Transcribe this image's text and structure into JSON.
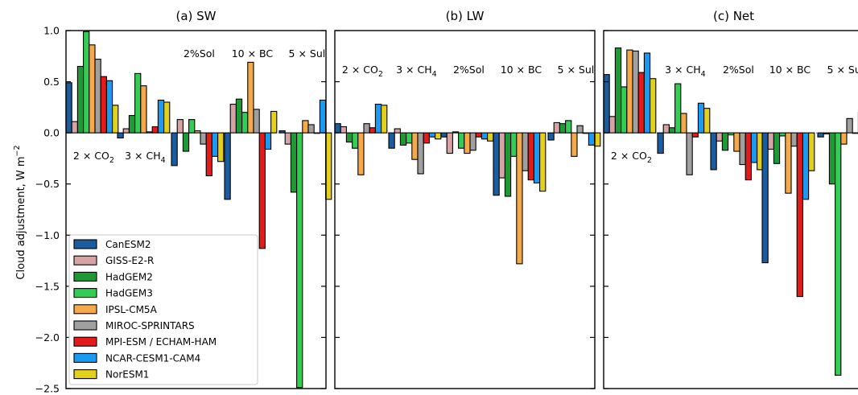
{
  "chart_data": {
    "type": "bar",
    "ylabel": "Cloud adjustment, W m−2",
    "ylim": [
      -2.5,
      1.0
    ],
    "yticks": [
      "1.0",
      "0.5",
      "0.0",
      "−0.5",
      "−1.0",
      "−1.5",
      "−2.0",
      "−2.5"
    ],
    "categories": [
      "2 × CO2",
      "3 × CH4",
      "2%Sol",
      "10 × BC",
      "5 × Sul"
    ],
    "models": [
      {
        "name": "CanESM2",
        "color": "#1b5c9e"
      },
      {
        "name": "GISS-E2-R",
        "color": "#d8a3a3"
      },
      {
        "name": "HadGEM2",
        "color": "#1e9a35"
      },
      {
        "name": "HadGEM3",
        "color": "#33cc55"
      },
      {
        "name": "IPSL-CM5A",
        "color": "#f5a94a"
      },
      {
        "name": "MIROC-SPRINTARS",
        "color": "#a0a0a0"
      },
      {
        "name": "MPI-ESM / ECHAM-HAM",
        "color": "#e51a1a"
      },
      {
        "name": "NCAR-CESM1-CAM4",
        "color": "#1a9af0"
      },
      {
        "name": "NorESM1",
        "color": "#e3d01a"
      }
    ],
    "panels": [
      {
        "title": "(a) SW",
        "values": [
          [
            0.49,
            0.11,
            0.65,
            0.99,
            0.86,
            0.72,
            0.55,
            0.51,
            0.27
          ],
          [
            -0.05,
            0.04,
            0.17,
            0.58,
            0.46,
            0.01,
            0.06,
            0.32,
            0.3
          ],
          [
            -0.32,
            0.13,
            -0.18,
            0.13,
            0.02,
            -0.11,
            -0.42,
            -0.23,
            -0.28
          ],
          [
            -0.65,
            0.28,
            0.33,
            0.2,
            0.69,
            0.23,
            -1.13,
            -0.16,
            0.21
          ],
          [
            0.02,
            -0.11,
            -0.58,
            -2.49,
            0.12,
            0.08,
            0.0,
            0.32,
            -0.65
          ]
        ],
        "category_labels": [
          {
            "base": "2 × CO",
            "sub": "2",
            "side": "below"
          },
          {
            "base": "3 × CH",
            "sub": "4",
            "side": "below"
          },
          {
            "base": "2%Sol",
            "sub": "",
            "side": "above"
          },
          {
            "base": "10 × BC",
            "sub": "",
            "side": "above"
          },
          {
            "base": "5 × Sul",
            "sub": "",
            "side": "above"
          }
        ]
      },
      {
        "title": "(b) LW",
        "values": [
          [
            0.09,
            0.06,
            -0.09,
            -0.15,
            -0.41,
            0.09,
            0.05,
            0.28,
            0.27
          ],
          [
            -0.15,
            0.04,
            -0.12,
            -0.1,
            -0.26,
            -0.4,
            -0.1,
            -0.04,
            -0.06
          ],
          [
            -0.04,
            -0.2,
            0.01,
            -0.15,
            -0.2,
            -0.17,
            -0.04,
            -0.06,
            -0.08
          ],
          [
            -0.61,
            -0.44,
            -0.62,
            -0.23,
            -1.28,
            -0.37,
            -0.46,
            -0.49,
            -0.57
          ],
          [
            -0.07,
            0.1,
            0.09,
            0.12,
            -0.23,
            0.07,
            0.0,
            -0.12,
            -0.13
          ]
        ],
        "category_labels": [
          {
            "base": "2 × CO",
            "sub": "2",
            "side": "above"
          },
          {
            "base": "3 × CH",
            "sub": "4",
            "side": "above"
          },
          {
            "base": "2%Sol",
            "sub": "",
            "side": "above"
          },
          {
            "base": "10 × BC",
            "sub": "",
            "side": "above"
          },
          {
            "base": "5 × Sul",
            "sub": "",
            "side": "above"
          }
        ]
      },
      {
        "title": "(c) Net",
        "values": [
          [
            0.57,
            0.16,
            0.83,
            0.45,
            0.81,
            0.8,
            0.59,
            0.78,
            0.53
          ],
          [
            -0.2,
            0.08,
            0.05,
            0.48,
            0.19,
            -0.41,
            -0.04,
            0.29,
            0.24
          ],
          [
            -0.36,
            -0.08,
            -0.17,
            -0.02,
            -0.18,
            -0.31,
            -0.46,
            -0.29,
            -0.36
          ],
          [
            -1.27,
            -0.16,
            -0.3,
            -0.03,
            -0.59,
            -0.13,
            -1.6,
            -0.65,
            -0.37
          ],
          [
            -0.04,
            -0.01,
            -0.5,
            -2.37,
            -0.11,
            0.14,
            0.0,
            0.2,
            0.0
          ]
        ],
        "category_labels": [
          {
            "base": "2 × CO",
            "sub": "2",
            "side": "below"
          },
          {
            "base": "3 × CH",
            "sub": "4",
            "side": "above"
          },
          {
            "base": "2%Sol",
            "sub": "",
            "side": "above"
          },
          {
            "base": "10 × BC",
            "sub": "",
            "side": "above"
          },
          {
            "base": "5 × Sul",
            "sub": "",
            "side": "above"
          }
        ]
      }
    ],
    "legend_position": "lower-left",
    "zero_line": "dotted"
  }
}
